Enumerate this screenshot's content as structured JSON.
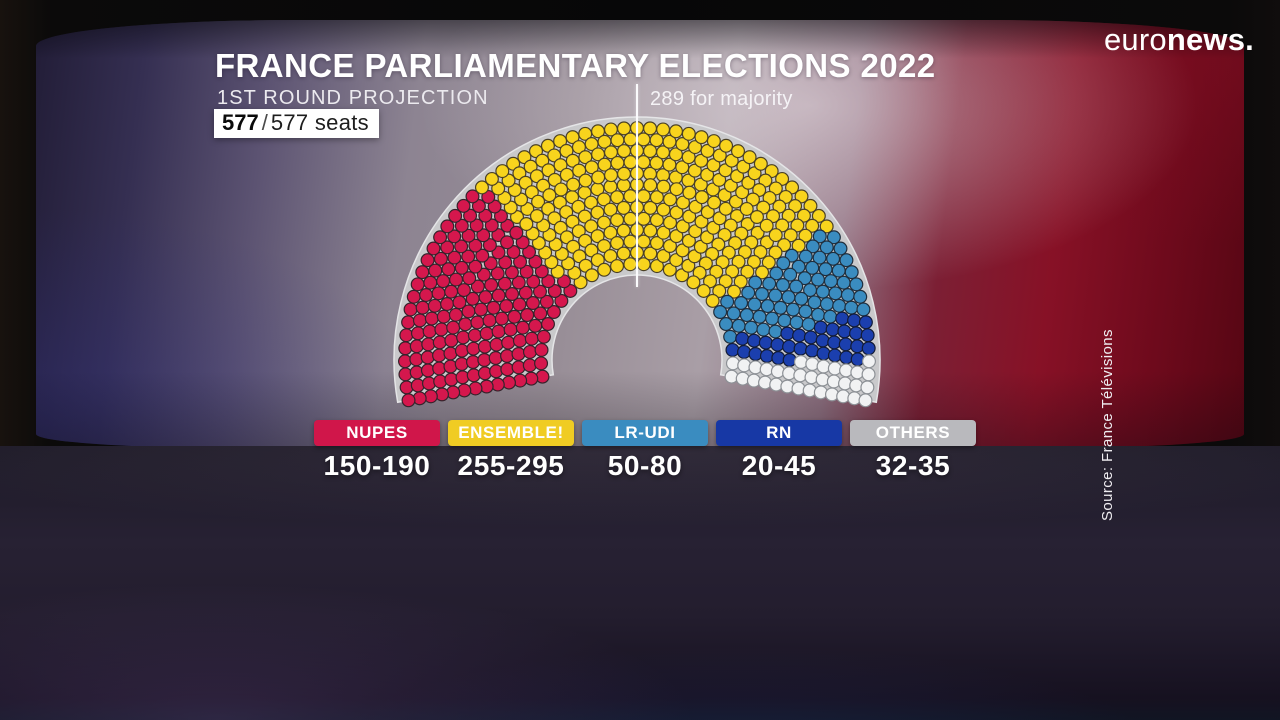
{
  "header": {
    "title": "FRANCE PARLIAMENTARY ELECTIONS 2022",
    "subtitle": "1ST ROUND PROJECTION",
    "seat_counter": {
      "filled": "577",
      "slash": "/",
      "total": "577 seats"
    },
    "majority_label": "289 for majority"
  },
  "branding": {
    "logo_light": "euro",
    "logo_bold": "news.",
    "source_credit": "Source: France Télévisions"
  },
  "chart_data": {
    "type": "parliament-hemicycle",
    "title": "France Parliamentary Elections 2022 — 1st round projection",
    "total_seats": 577,
    "seats_filled": 577,
    "rows": 13,
    "majority": 289,
    "plate_color": "#c9c9cb",
    "plate_edge_color": "#e5e5e7",
    "majority_line_color": "#fbfbfd",
    "series": [
      {
        "name": "NUPES",
        "range": "150-190",
        "seats": 170,
        "color": "#d5174d",
        "stroke": "#35232b",
        "badge": "#d0164a"
      },
      {
        "name": "ENSEMBLE!",
        "range": "255-295",
        "seats": 275,
        "color": "#f8d41d",
        "stroke": "#4a4024",
        "badge": "#f0cc23"
      },
      {
        "name": "LR-UDI",
        "range": "50-80",
        "seats": 65,
        "color": "#3a8cc0",
        "stroke": "#1f2e3d",
        "badge": "#3a8cc0"
      },
      {
        "name": "RN",
        "range": "20-45",
        "seats": 33,
        "color": "#1b3fae",
        "stroke": "#131c36",
        "badge": "#1738a5"
      },
      {
        "name": "OTHERS",
        "range": "32-35",
        "seats": 34,
        "color": "#f1f2f3",
        "stroke": "#8d9196",
        "badge": "#b9b9bd"
      }
    ]
  }
}
